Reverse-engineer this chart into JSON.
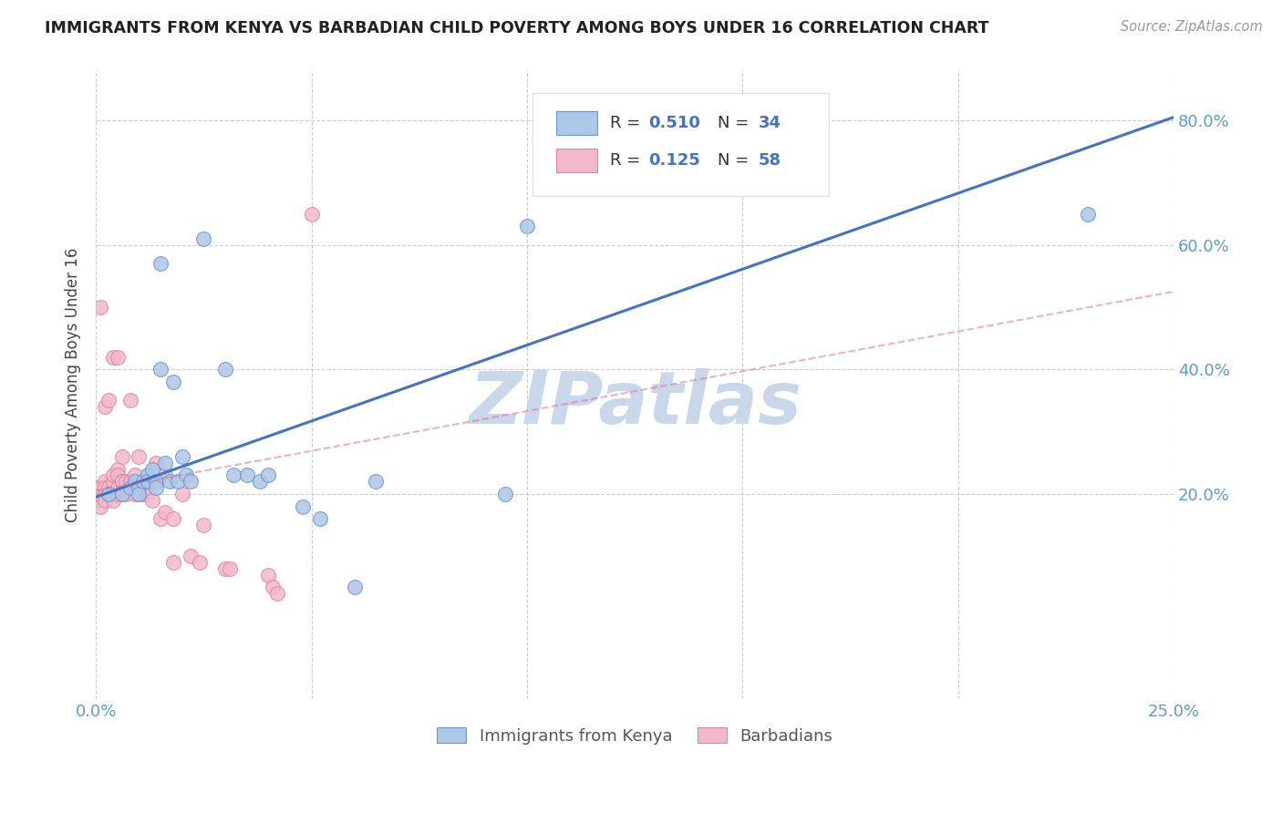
{
  "title": "IMMIGRANTS FROM KENYA VS BARBADIAN CHILD POVERTY AMONG BOYS UNDER 16 CORRELATION CHART",
  "source": "Source: ZipAtlas.com",
  "xlabel_blue": "Immigrants from Kenya",
  "xlabel_pink": "Barbadians",
  "ylabel": "Child Poverty Among Boys Under 16",
  "watermark": "ZIPatlas",
  "xlim": [
    0.0,
    0.25
  ],
  "ylim": [
    -0.13,
    0.88
  ],
  "ytick_positions": [
    0.2,
    0.4,
    0.6,
    0.8
  ],
  "ytick_labels": [
    "20.0%",
    "40.0%",
    "60.0%",
    "80.0%"
  ],
  "xtick_positions": [
    0.0,
    0.05,
    0.1,
    0.15,
    0.2,
    0.25
  ],
  "xtick_labels": [
    "0.0%",
    "",
    "",
    "",
    "",
    "25.0%"
  ],
  "blue_x": [
    0.003,
    0.006,
    0.008,
    0.009,
    0.01,
    0.01,
    0.011,
    0.012,
    0.012,
    0.013,
    0.014,
    0.014,
    0.015,
    0.015,
    0.016,
    0.017,
    0.018,
    0.019,
    0.02,
    0.021,
    0.022,
    0.025,
    0.03,
    0.032,
    0.035,
    0.038,
    0.04,
    0.048,
    0.052,
    0.06,
    0.065,
    0.095,
    0.1,
    0.23
  ],
  "blue_y": [
    0.2,
    0.2,
    0.21,
    0.22,
    0.21,
    0.2,
    0.22,
    0.23,
    0.22,
    0.24,
    0.22,
    0.21,
    0.57,
    0.4,
    0.25,
    0.22,
    0.38,
    0.22,
    0.26,
    0.23,
    0.22,
    0.61,
    0.4,
    0.23,
    0.23,
    0.22,
    0.23,
    0.18,
    0.16,
    0.05,
    0.22,
    0.2,
    0.63,
    0.65
  ],
  "pink_x": [
    0.0,
    0.0,
    0.001,
    0.001,
    0.001,
    0.001,
    0.002,
    0.002,
    0.002,
    0.002,
    0.002,
    0.003,
    0.003,
    0.003,
    0.003,
    0.004,
    0.004,
    0.004,
    0.004,
    0.005,
    0.005,
    0.005,
    0.005,
    0.005,
    0.006,
    0.006,
    0.006,
    0.006,
    0.007,
    0.007,
    0.008,
    0.008,
    0.008,
    0.009,
    0.009,
    0.01,
    0.01,
    0.01,
    0.011,
    0.011,
    0.012,
    0.013,
    0.014,
    0.015,
    0.016,
    0.016,
    0.018,
    0.018,
    0.02,
    0.022,
    0.024,
    0.025,
    0.03,
    0.031,
    0.04,
    0.041,
    0.042,
    0.05
  ],
  "pink_y": [
    0.19,
    0.21,
    0.2,
    0.21,
    0.18,
    0.5,
    0.22,
    0.2,
    0.19,
    0.21,
    0.34,
    0.2,
    0.21,
    0.2,
    0.35,
    0.22,
    0.23,
    0.19,
    0.42,
    0.2,
    0.24,
    0.21,
    0.23,
    0.42,
    0.26,
    0.22,
    0.2,
    0.22,
    0.2,
    0.22,
    0.22,
    0.22,
    0.35,
    0.2,
    0.23,
    0.21,
    0.26,
    0.21,
    0.2,
    0.2,
    0.2,
    0.19,
    0.25,
    0.16,
    0.23,
    0.17,
    0.16,
    0.09,
    0.2,
    0.1,
    0.09,
    0.15,
    0.08,
    0.08,
    0.07,
    0.05,
    0.04,
    0.65
  ],
  "blue_color": "#aec6e8",
  "blue_edge_color": "#6699cc",
  "blue_line_color": "#4472c4",
  "pink_color": "#f4b8cb",
  "pink_edge_color": "#dd8899",
  "pink_line_color": "#e07090",
  "title_color": "#222222",
  "axis_color": "#5b9bd5",
  "grid_color": "#cccccc",
  "background_color": "#ffffff",
  "watermark_color": "#c8d8ea",
  "blue_trend_x0": 0.0,
  "blue_trend_y0": 0.195,
  "blue_trend_x1": 0.25,
  "blue_trend_y1": 0.805,
  "pink_trend_x0": 0.0,
  "pink_trend_y0": 0.205,
  "pink_trend_x1": 0.25,
  "pink_trend_y1": 0.525
}
